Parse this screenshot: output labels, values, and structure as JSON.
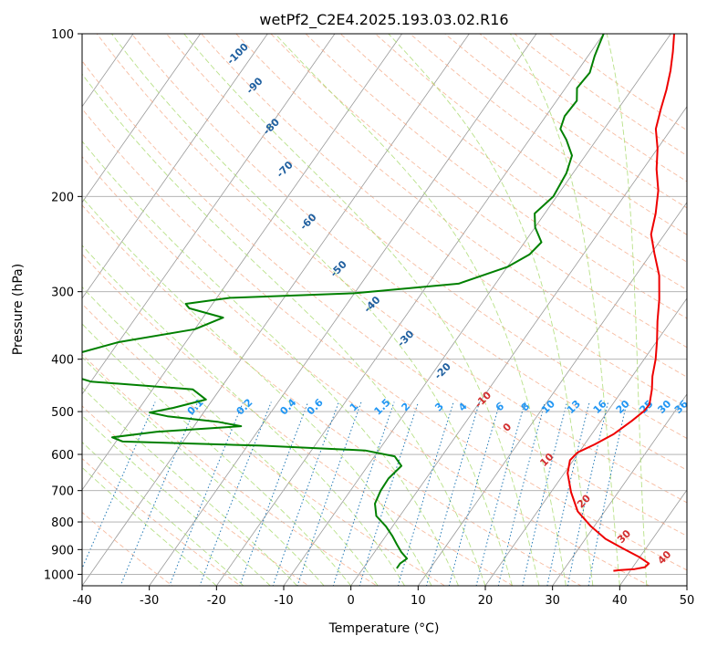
{
  "chart_data": {
    "type": "line",
    "title": "wetPf2_C2E4.2025.193.03.02.R16",
    "xlabel": "Temperature (°C)",
    "ylabel": "Pressure (hPa)",
    "xlim": [
      -40,
      50
    ],
    "ylim": [
      1050,
      100
    ],
    "y_scale": "log",
    "grid": true,
    "x_ticks": [
      -40,
      -30,
      -20,
      -10,
      0,
      10,
      20,
      30,
      40,
      50
    ],
    "y_ticks": [
      100,
      200,
      300,
      400,
      500,
      600,
      700,
      800,
      900,
      1000
    ],
    "skew_factor": 0.64,
    "colors": {
      "temperature": "#ee0000",
      "dewpoint": "#008000",
      "isotherm": "#999999",
      "dry_adiabat": "#f4a582",
      "moist_adiabat": "#a6d96a",
      "mixing_ratio": "#1f77b4",
      "mixing_ratio_label": "#2196f3",
      "dry_label": "#1f5f9f",
      "moist_label": "#d32f2f"
    },
    "dry_adiabat_labels": [
      {
        "text": "-100",
        "x": -16.5,
        "y": 110
      },
      {
        "text": "-90",
        "x": -14.0,
        "y": 126
      },
      {
        "text": "-80",
        "x": -11.5,
        "y": 150
      },
      {
        "text": "-70",
        "x": -9.5,
        "y": 180
      },
      {
        "text": "-60",
        "x": -6.0,
        "y": 225
      },
      {
        "text": "-50",
        "x": -1.5,
        "y": 275
      },
      {
        "text": "-40",
        "x": 3.5,
        "y": 320
      },
      {
        "text": "-30",
        "x": 8.5,
        "y": 370
      },
      {
        "text": "-20",
        "x": 14.0,
        "y": 425
      }
    ],
    "moist_labels": [
      {
        "text": "0",
        "x": 23.6,
        "y": 540
      },
      {
        "text": "10",
        "x": 29.5,
        "y": 620
      },
      {
        "text": "20",
        "x": 35.0,
        "y": 740
      },
      {
        "text": "30",
        "x": 41.0,
        "y": 860
      },
      {
        "text": "40",
        "x": 47.0,
        "y": 940
      },
      {
        "text": "-10",
        "x": 20.0,
        "y": 480
      }
    ],
    "mixing_ratio_labels": [
      {
        "text": "0.1",
        "x": -22.8,
        "y": 495
      },
      {
        "text": "0.2",
        "x": -15.5,
        "y": 495
      },
      {
        "text": "0.4",
        "x": -9.0,
        "y": 495
      },
      {
        "text": "0.6",
        "x": -5.0,
        "y": 495
      },
      {
        "text": "1",
        "x": 0.8,
        "y": 495
      },
      {
        "text": "1.5",
        "x": 5.0,
        "y": 495
      },
      {
        "text": "2",
        "x": 8.5,
        "y": 495
      },
      {
        "text": "3",
        "x": 13.5,
        "y": 495
      },
      {
        "text": "4",
        "x": 17.0,
        "y": 495
      },
      {
        "text": "6",
        "x": 22.5,
        "y": 495
      },
      {
        "text": "8",
        "x": 26.3,
        "y": 495
      },
      {
        "text": "10",
        "x": 29.7,
        "y": 495
      },
      {
        "text": "13",
        "x": 33.5,
        "y": 495
      },
      {
        "text": "16",
        "x": 37.4,
        "y": 495
      },
      {
        "text": "20",
        "x": 40.8,
        "y": 495
      },
      {
        "text": "25",
        "x": 44.3,
        "y": 495
      },
      {
        "text": "30",
        "x": 47.0,
        "y": 495
      },
      {
        "text": "36",
        "x": 49.5,
        "y": 495
      }
    ],
    "series": [
      {
        "name": "",
        "role": "temperature",
        "points": [
          [
            37.5,
            985
          ],
          [
            38.5,
            982
          ],
          [
            40.5,
            978
          ],
          [
            41.8,
            970
          ],
          [
            42.0,
            955
          ],
          [
            40.0,
            930
          ],
          [
            36.5,
            895
          ],
          [
            33.0,
            860
          ],
          [
            29.5,
            815
          ],
          [
            26.0,
            765
          ],
          [
            23.0,
            705
          ],
          [
            20.5,
            650
          ],
          [
            19.5,
            615
          ],
          [
            19.8,
            595
          ],
          [
            21.5,
            575
          ],
          [
            23.3,
            550
          ],
          [
            24.6,
            520
          ],
          [
            25.4,
            498
          ],
          [
            25.5,
            485
          ],
          [
            24.3,
            455
          ],
          [
            23.0,
            430
          ],
          [
            21.7,
            400
          ],
          [
            20.0,
            370
          ],
          [
            18.0,
            340
          ],
          [
            16.0,
            310
          ],
          [
            13.5,
            280
          ],
          [
            10.5,
            255
          ],
          [
            8.0,
            235
          ],
          [
            6.5,
            215
          ],
          [
            4.5,
            195
          ],
          [
            2.0,
            178
          ],
          [
            0.0,
            163
          ],
          [
            -2.3,
            150
          ],
          [
            -3.6,
            138
          ],
          [
            -4.8,
            127
          ],
          [
            -6.2,
            117
          ],
          [
            -7.8,
            108
          ],
          [
            -9.5,
            100
          ]
        ]
      },
      {
        "name": "",
        "role": "dewpoint",
        "points": [
          [
            5.0,
            975
          ],
          [
            5.0,
            955
          ],
          [
            5.5,
            935
          ],
          [
            4.0,
            910
          ],
          [
            2.5,
            880
          ],
          [
            1.0,
            850
          ],
          [
            -1.0,
            815
          ],
          [
            -3.5,
            780
          ],
          [
            -5.0,
            740
          ],
          [
            -5.5,
            700
          ],
          [
            -5.6,
            665
          ],
          [
            -5.0,
            630
          ],
          [
            -7.0,
            605
          ],
          [
            -12.0,
            590
          ],
          [
            -28.0,
            578
          ],
          [
            -49.0,
            568
          ],
          [
            -51.0,
            558
          ],
          [
            -45.0,
            545
          ],
          [
            -33.0,
            532
          ],
          [
            -37.0,
            522
          ],
          [
            -45.0,
            510
          ],
          [
            -48.0,
            502
          ],
          [
            -45.0,
            492
          ],
          [
            -41.0,
            475
          ],
          [
            -44.0,
            455
          ],
          [
            -60.0,
            440
          ],
          [
            -70.0,
            410
          ],
          [
            -60.0,
            372
          ],
          [
            -50.0,
            352
          ],
          [
            -47.0,
            335
          ],
          [
            -53.0,
            322
          ],
          [
            -54.0,
            316
          ],
          [
            -48.0,
            308
          ],
          [
            -30.0,
            302
          ],
          [
            -15.5,
            290
          ],
          [
            -10.0,
            270
          ],
          [
            -8.0,
            256
          ],
          [
            -7.5,
            243
          ],
          [
            -10.0,
            228
          ],
          [
            -11.5,
            215
          ],
          [
            -10.5,
            200
          ],
          [
            -11.0,
            181
          ],
          [
            -12.0,
            168
          ],
          [
            -14.5,
            157
          ],
          [
            -16.5,
            150
          ],
          [
            -17.2,
            142
          ],
          [
            -17.0,
            133
          ],
          [
            -18.3,
            126
          ],
          [
            -18.0,
            118
          ],
          [
            -19.0,
            110
          ],
          [
            -19.5,
            105
          ],
          [
            -20.0,
            100
          ]
        ]
      }
    ]
  }
}
